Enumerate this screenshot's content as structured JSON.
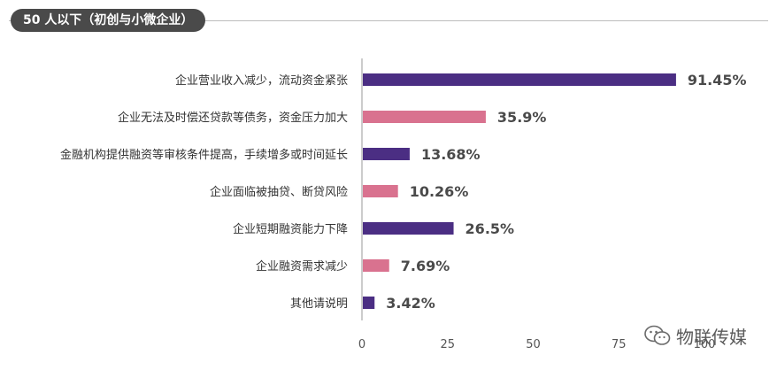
{
  "header": {
    "title": "50 人以下（初创与小微企业）"
  },
  "watermark": {
    "text": "物联传媒",
    "icon": "wechat-icon"
  },
  "colors": {
    "purple": "#4b2e83",
    "pink": "#d9728f",
    "axis": "#999999"
  },
  "chart_data": {
    "type": "bar",
    "orientation": "horizontal",
    "title": "",
    "xlabel": "",
    "ylabel": "",
    "xlim": [
      0,
      100
    ],
    "ticks": [
      0,
      25,
      50,
      75,
      100
    ],
    "grid": false,
    "categories": [
      "企业营业收入减少，流动资金紧张",
      "企业无法及时偿还贷款等债务，资金压力加大",
      "金融机构提供融资等审核条件提高，手续增多或时间延长",
      "企业面临被抽贷、断贷风险",
      "企业短期融资能力下降",
      "企业融资需求减少",
      "其他请说明"
    ],
    "values": [
      91.45,
      35.9,
      13.68,
      10.26,
      26.5,
      7.69,
      3.42
    ],
    "value_labels": [
      "91.45%",
      "35.9%",
      "13.68%",
      "10.26%",
      "26.5%",
      "7.69%",
      "3.42%"
    ],
    "bar_colors": [
      "#4b2e83",
      "#d9728f",
      "#4b2e83",
      "#d9728f",
      "#4b2e83",
      "#d9728f",
      "#4b2e83"
    ]
  }
}
